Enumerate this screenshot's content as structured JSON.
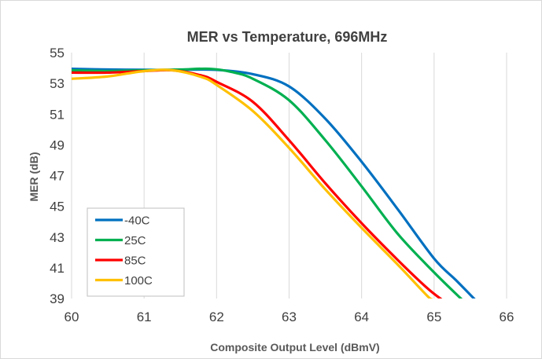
{
  "chart_data": {
    "type": "line",
    "title": "MER vs Temperature, 696MHz",
    "xlabel": "Composite Output Level (dBmV)",
    "ylabel": "MER (dB)",
    "xlim": [
      60,
      66
    ],
    "ylim": [
      39,
      55
    ],
    "xticks": [
      "60",
      "61",
      "62",
      "63",
      "64",
      "65",
      "66"
    ],
    "yticks": [
      "39",
      "41",
      "43",
      "45",
      "47",
      "49",
      "51",
      "53",
      "55"
    ],
    "grid": "vertical",
    "legend_position": "bottom-left",
    "series": [
      {
        "name": "-40C",
        "color": "#0070C0",
        "points": [
          [
            60,
            53.95
          ],
          [
            60.5,
            53.9
          ],
          [
            61,
            53.88
          ],
          [
            61.5,
            53.88
          ],
          [
            62,
            53.88
          ],
          [
            62.5,
            53.6
          ],
          [
            63,
            52.8
          ],
          [
            63.5,
            50.7
          ],
          [
            64,
            47.9
          ],
          [
            64.5,
            44.8
          ],
          [
            65,
            41.6
          ],
          [
            65.3,
            40.2
          ],
          [
            65.56,
            38.95
          ]
        ]
      },
      {
        "name": "25C",
        "color": "#00B050",
        "points": [
          [
            60,
            53.85
          ],
          [
            60.5,
            53.8
          ],
          [
            61,
            53.85
          ],
          [
            61.5,
            53.9
          ],
          [
            61.9,
            53.95
          ],
          [
            62.2,
            53.75
          ],
          [
            62.5,
            53.3
          ],
          [
            63,
            51.9
          ],
          [
            63.5,
            49.3
          ],
          [
            64,
            46.3
          ],
          [
            64.5,
            43.2
          ],
          [
            65,
            40.7
          ],
          [
            65.38,
            38.95
          ]
        ]
      },
      {
        "name": "85C",
        "color": "#FF0000",
        "points": [
          [
            60,
            53.7
          ],
          [
            60.5,
            53.7
          ],
          [
            61,
            53.8
          ],
          [
            61.4,
            53.85
          ],
          [
            61.8,
            53.5
          ],
          [
            62,
            53.1
          ],
          [
            62.5,
            51.8
          ],
          [
            63,
            49.3
          ],
          [
            63.5,
            46.5
          ],
          [
            64,
            43.9
          ],
          [
            64.5,
            41.5
          ],
          [
            64.9,
            39.7
          ],
          [
            65.1,
            38.95
          ]
        ]
      },
      {
        "name": "100C",
        "color": "#FFC000",
        "points": [
          [
            60,
            53.3
          ],
          [
            60.5,
            53.45
          ],
          [
            61,
            53.8
          ],
          [
            61.4,
            53.85
          ],
          [
            61.8,
            53.4
          ],
          [
            62,
            52.9
          ],
          [
            62.5,
            51.2
          ],
          [
            63,
            48.8
          ],
          [
            63.5,
            46.1
          ],
          [
            64,
            43.6
          ],
          [
            64.5,
            41.2
          ],
          [
            64.9,
            39.2
          ],
          [
            64.97,
            38.95
          ]
        ]
      }
    ]
  }
}
